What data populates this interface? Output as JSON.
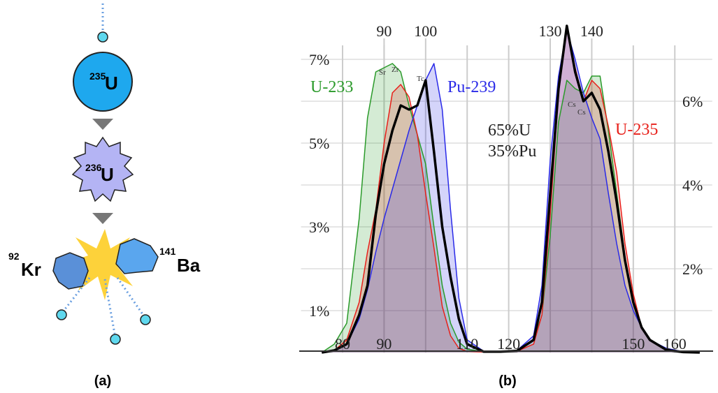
{
  "diagram": {
    "nodes": [
      {
        "mass": "235",
        "symbol": "U"
      },
      {
        "mass": "236",
        "symbol": "U"
      },
      {
        "mass": "92",
        "symbol": "Kr"
      },
      {
        "mass": "141",
        "symbol": "Ba"
      }
    ]
  },
  "captions": [
    "(a)",
    "(b)"
  ],
  "chart_data": {
    "type": "line",
    "x": [
      75,
      78,
      81,
      84,
      86,
      88,
      90,
      92,
      94,
      96,
      98,
      100,
      102,
      104,
      106,
      108,
      110,
      114,
      118,
      122,
      126,
      128,
      130,
      132,
      134,
      136,
      138,
      140,
      142,
      144,
      146,
      148,
      150,
      152,
      154,
      158,
      162,
      166
    ],
    "series": [
      {
        "name": "U-233",
        "color": "#2a9a2a",
        "fill": true,
        "values": [
          0,
          0.2,
          0.7,
          3.2,
          5.6,
          6.7,
          6.8,
          6.9,
          6.7,
          5.9,
          5.2,
          4.5,
          3.0,
          1.6,
          0.7,
          0.25,
          0.08,
          0.02,
          0.02,
          0.05,
          0.3,
          0.9,
          2.8,
          5.5,
          6.5,
          6.3,
          6.2,
          6.6,
          6.6,
          5.3,
          3.8,
          2.3,
          1.2,
          0.6,
          0.3,
          0.05,
          0.01,
          0
        ]
      },
      {
        "name": "U-235",
        "color": "#e8201a",
        "fill": true,
        "values": [
          0,
          0.05,
          0.3,
          1.2,
          2.4,
          3.4,
          5.0,
          6.2,
          6.4,
          6.1,
          5.2,
          3.8,
          2.5,
          1.1,
          0.4,
          0.1,
          0.03,
          0.01,
          0.01,
          0.03,
          0.2,
          0.9,
          3.3,
          6.2,
          7.8,
          6.8,
          6.0,
          6.5,
          6.3,
          5.4,
          4.3,
          2.6,
          1.4,
          0.6,
          0.3,
          0.05,
          0.01,
          0
        ]
      },
      {
        "name": "Pu-239",
        "color": "#2a2ae8",
        "fill": true,
        "values": [
          0,
          0.05,
          0.2,
          0.8,
          1.5,
          2.4,
          3.2,
          3.9,
          4.6,
          5.3,
          5.9,
          6.5,
          6.9,
          5.8,
          3.4,
          1.3,
          0.3,
          0.03,
          0.02,
          0.05,
          0.4,
          1.6,
          4.6,
          6.6,
          7.7,
          7.0,
          6.2,
          5.6,
          5.1,
          3.8,
          2.6,
          1.6,
          1.0,
          0.6,
          0.3,
          0.1,
          0.02,
          0
        ]
      },
      {
        "name": "65%U 35%Pu",
        "color": "#000000",
        "fill": false,
        "values": [
          0,
          0.05,
          0.2,
          0.9,
          1.6,
          3.3,
          4.5,
          5.3,
          5.9,
          5.8,
          5.9,
          6.5,
          4.8,
          3.0,
          1.8,
          0.8,
          0.2,
          0.02,
          0.02,
          0.04,
          0.3,
          1.2,
          3.8,
          6.3,
          7.8,
          6.7,
          6.0,
          6.2,
          5.8,
          4.8,
          3.6,
          2.2,
          1.2,
          0.6,
          0.3,
          0.06,
          0.01,
          0
        ]
      }
    ],
    "annotations": [
      "Sr",
      "Zr",
      "Tc",
      "Cs",
      "Cs"
    ],
    "xlim": [
      70,
      169
    ],
    "xticks": [
      80,
      90,
      110,
      120,
      150,
      160
    ],
    "xticks_top": [
      90,
      100,
      130,
      140
    ],
    "ylim": [
      0,
      8
    ],
    "yticks": [
      {
        "value": 1,
        "label": "1%"
      },
      {
        "value": 3,
        "label": "3%"
      },
      {
        "value": 5,
        "label": "5%"
      },
      {
        "value": 7,
        "label": "7%"
      }
    ],
    "y2lim": [
      0,
      8
    ],
    "y2ticks": [
      {
        "value": 2,
        "label": "2%"
      },
      {
        "value": 4,
        "label": "4%"
      },
      {
        "value": 6,
        "label": "6%"
      }
    ],
    "grid": true
  }
}
